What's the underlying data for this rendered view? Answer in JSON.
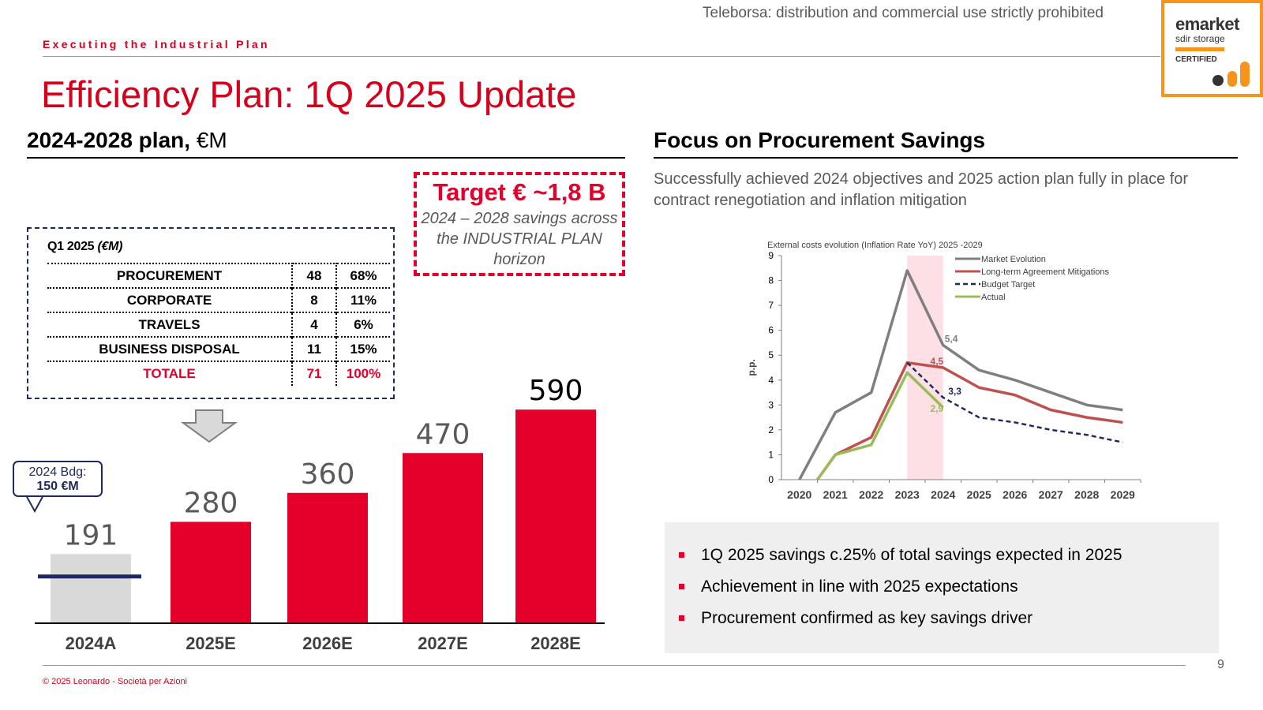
{
  "watermark": "Teleborsa: distribution and commercial use strictly prohibited",
  "emarket": {
    "title": "emarket",
    "subtitle": "sdir storage",
    "certified": "CERTIFIED"
  },
  "kicker": "Executing the Industrial Plan",
  "title": "Efficiency Plan: 1Q 2025 Update",
  "left": {
    "title": "2024-2028 plan,",
    "unit": "€M",
    "target": {
      "title": "Target € ~1,8 B",
      "description": "2024 – 2028 savings across the INDUSTRIAL PLAN horizon"
    },
    "q1": {
      "title": "Q1 2025",
      "unit": "(€M)",
      "rows": [
        {
          "label": "PROCUREMENT",
          "value": "48",
          "pct": "68%"
        },
        {
          "label": "CORPORATE",
          "value": "8",
          "pct": "11%"
        },
        {
          "label": "TRAVELS",
          "value": "4",
          "pct": "6%"
        },
        {
          "label": "BUSINESS DISPOSAL",
          "value": "11",
          "pct": "15%"
        }
      ],
      "total": {
        "label": "TOTALE",
        "value": "71",
        "pct": "100%"
      }
    },
    "callout": {
      "line1": "2024 Bdg:",
      "line2": "150 €M"
    }
  },
  "right": {
    "title": "Focus on Procurement Savings",
    "subtitle": "Successfully achieved 2024 objectives and 2025 action plan fully in place for contract renegotiation and inflation mitigation",
    "bullets": [
      "1Q 2025 savings c.25% of total savings expected in 2025",
      "Achievement in line with 2025 expectations",
      "Procurement confirmed as key savings driver"
    ]
  },
  "chart_data": [
    {
      "type": "bar",
      "title": "2024-2028 plan, €M",
      "categories": [
        "2024A",
        "2025E",
        "2026E",
        "2027E",
        "2028E"
      ],
      "values": [
        191,
        280,
        360,
        470,
        590
      ],
      "reference_line": {
        "label": "2024 Bdg: 150 €M",
        "value": 150
      },
      "colors": {
        "actual": "#d9d9d9",
        "estimate": "#e4002b",
        "reference": "#1f2a5c"
      },
      "ylim": [
        0,
        650
      ]
    },
    {
      "type": "line",
      "title": "External costs evolution (Inflation Rate YoY) 2025 -2029",
      "ylabel": "p.p.",
      "x": [
        "2020",
        "2021",
        "2022",
        "2023",
        "2024",
        "2025",
        "2026",
        "2027",
        "2028",
        "2029"
      ],
      "ylim": [
        0,
        9
      ],
      "yticks": [
        0,
        1,
        2,
        3,
        4,
        5,
        6,
        7,
        8,
        9
      ],
      "highlight_band": [
        "2023",
        "2024"
      ],
      "series": [
        {
          "name": "Market Evolution",
          "color": "#7f7f7f",
          "dashed": false,
          "x": [
            2020,
            2021,
            2022,
            2023,
            2024,
            2025,
            2026,
            2027,
            2028,
            2029
          ],
          "values": [
            0,
            2.7,
            3.5,
            8.4,
            5.4,
            4.4,
            4.0,
            3.5,
            3.0,
            2.8
          ]
        },
        {
          "name": "Long-term Agreement Mitigations",
          "color": "#c0504d",
          "dashed": false,
          "x": [
            2020.5,
            2021,
            2022,
            2023,
            2024,
            2025,
            2026,
            2027,
            2028,
            2029
          ],
          "values": [
            0,
            1.0,
            1.7,
            4.7,
            4.5,
            3.7,
            3.4,
            2.8,
            2.5,
            2.3
          ]
        },
        {
          "name": "Budget Target",
          "color": "#1f2a5c",
          "dashed": true,
          "x": [
            2023,
            2024,
            2025,
            2026,
            2027,
            2028,
            2029
          ],
          "values": [
            4.7,
            3.3,
            2.5,
            2.3,
            2.0,
            1.8,
            1.5
          ]
        },
        {
          "name": "Actual",
          "color": "#9bbb59",
          "dashed": false,
          "x": [
            2020.5,
            2021,
            2022,
            2023,
            2024
          ],
          "values": [
            0,
            1.0,
            1.4,
            4.3,
            2.9
          ]
        }
      ],
      "annotations": [
        {
          "text": "5,4",
          "x": 2024,
          "y": 5.4,
          "color": "#7f7f7f"
        },
        {
          "text": "4,5",
          "x": 2023.6,
          "y": 4.5,
          "color": "#c0504d"
        },
        {
          "text": "3,3",
          "x": 2024.1,
          "y": 3.3,
          "color": "#1f2a5c"
        },
        {
          "text": "2,9",
          "x": 2023.6,
          "y": 2.6,
          "color": "#9bbb59"
        }
      ]
    }
  ],
  "page_number": "9",
  "copyright": "© 2025 Leonardo - Società per Azioni"
}
